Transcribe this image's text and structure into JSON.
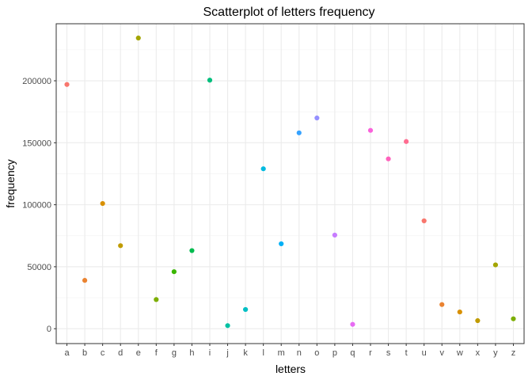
{
  "chart_data": {
    "type": "scatter",
    "title": "Scatterplot of letters frequency",
    "xlabel": "letters",
    "ylabel": "frequency",
    "categories": [
      "a",
      "b",
      "c",
      "d",
      "e",
      "f",
      "g",
      "h",
      "i",
      "j",
      "k",
      "l",
      "m",
      "n",
      "o",
      "p",
      "q",
      "r",
      "s",
      "t",
      "u",
      "v",
      "w",
      "x",
      "y",
      "z"
    ],
    "values": [
      197000,
      39000,
      101000,
      67000,
      234500,
      23500,
      46000,
      63000,
      200500,
      2500,
      15500,
      129000,
      68500,
      158000,
      170000,
      75500,
      3500,
      160000,
      137000,
      151000,
      87000,
      19500,
      13500,
      6500,
      51500,
      8000
    ],
    "yticks": [
      0,
      50000,
      100000,
      150000,
      200000
    ],
    "ytick_labels": [
      "0",
      "50000",
      "100000",
      "150000",
      "200000"
    ],
    "ylim": [
      -12000,
      246000
    ],
    "grid": true,
    "legend": "none",
    "colors": [
      "#F8766D",
      "#EA8331",
      "#D89000",
      "#C09B00",
      "#A3A500",
      "#7CAE00",
      "#39B600",
      "#00BB4E",
      "#00BF7D",
      "#00C1A3",
      "#00BFC4",
      "#00BAE0",
      "#00B0F6",
      "#35A2FF",
      "#9590FF",
      "#C77CFF",
      "#E76BF3",
      "#FA62DB",
      "#FF62BC",
      "#FF6C90",
      "#F8766D",
      "#EA8331",
      "#D89000",
      "#C09B00",
      "#A3A500",
      "#7CAE00"
    ]
  }
}
